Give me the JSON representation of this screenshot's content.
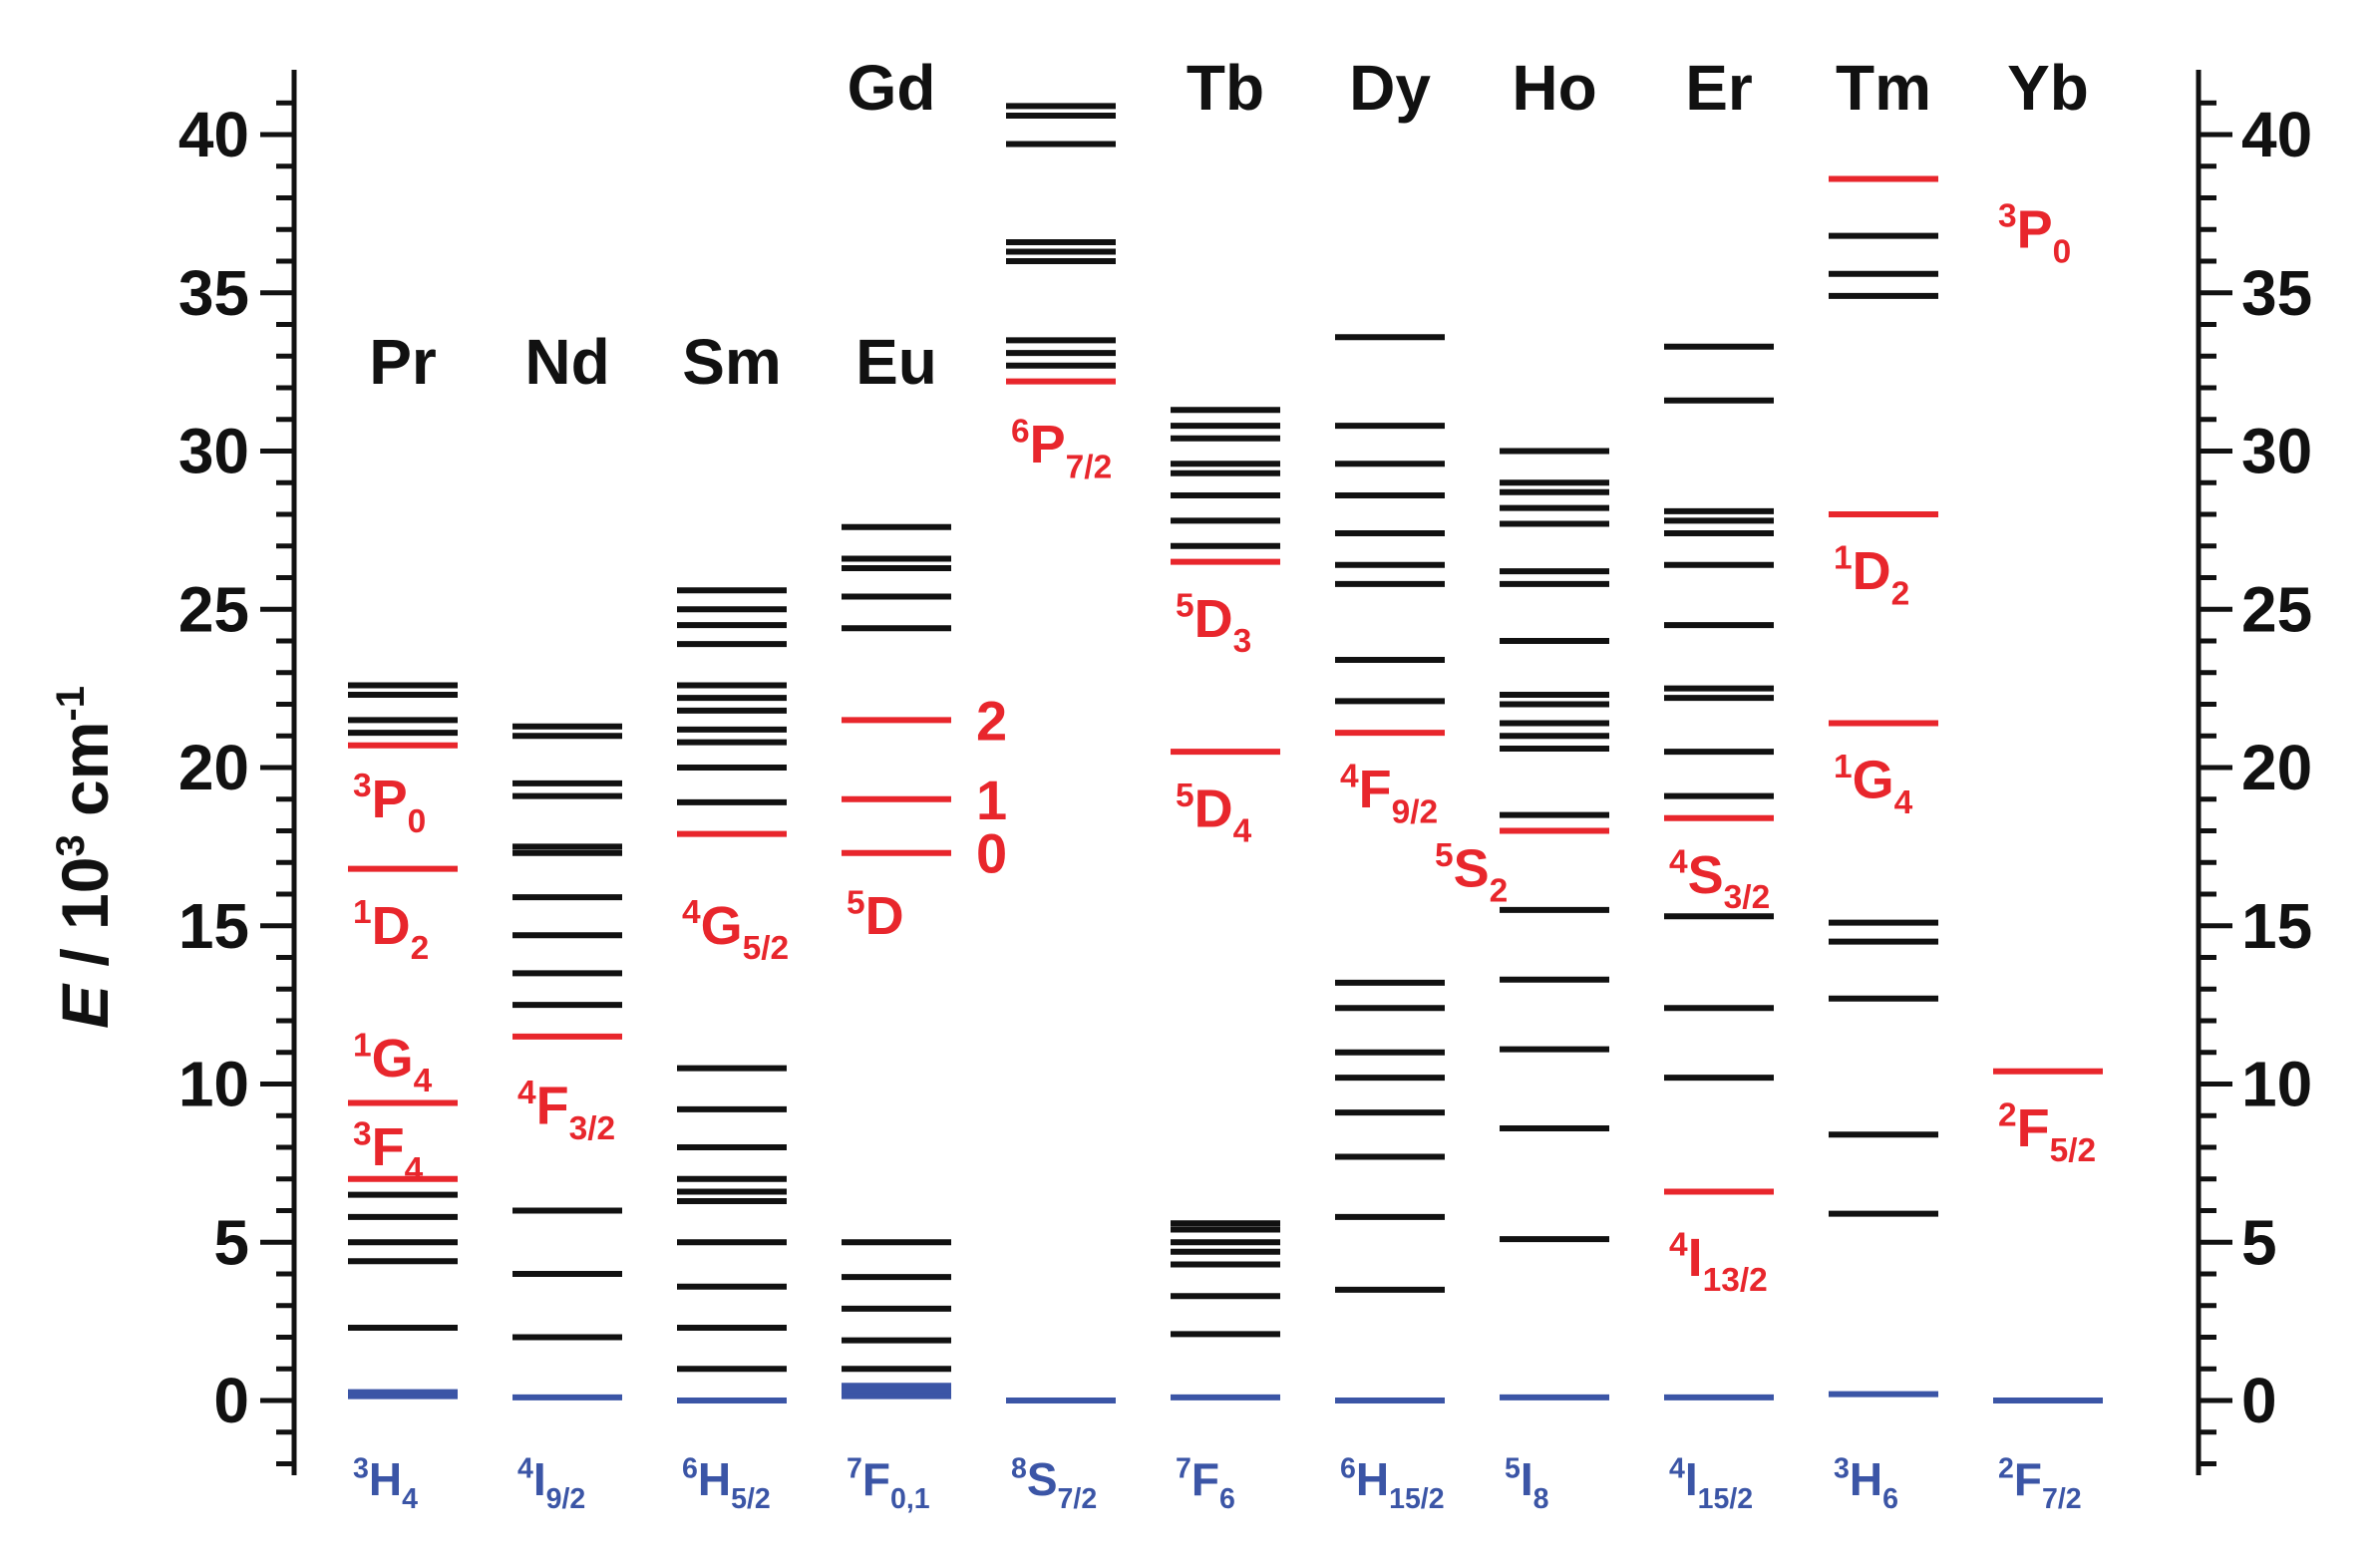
{
  "chart_data": {
    "type": "energy-level-diagram",
    "ylabel": "E / 10",
    "ylabel_sup": "3",
    "ylabel_unit": "cm",
    "ylabel_unit_sup": "-1",
    "ylim": [
      -2.5,
      42
    ],
    "yticks": [
      0,
      5,
      10,
      15,
      20,
      25,
      30,
      35,
      40
    ],
    "colors": {
      "black": "#111111",
      "red": "#e8262c",
      "blue": "#3b55a6"
    },
    "ions": [
      {
        "name": "Pr",
        "ground": {
          "base": "H",
          "pre": "3",
          "sub": "4"
        },
        "levels": [
          {
            "E": 2.3,
            "c": "black"
          },
          {
            "E": 4.4,
            "c": "black"
          },
          {
            "E": 5.0,
            "c": "black"
          },
          {
            "E": 5.8,
            "c": "black"
          },
          {
            "E": 6.5,
            "c": "black"
          },
          {
            "E": 7.0,
            "c": "red"
          },
          {
            "E": 9.4,
            "c": "red"
          },
          {
            "E": 16.8,
            "c": "red"
          },
          {
            "E": 20.7,
            "c": "red"
          },
          {
            "E": 21.1,
            "c": "black"
          },
          {
            "E": 21.5,
            "c": "black"
          },
          {
            "E": 22.3,
            "c": "black"
          },
          {
            "E": 22.6,
            "c": "black"
          },
          {
            "E": 0.2,
            "c": "blue",
            "thick": true
          }
        ],
        "labels": [
          {
            "base": "P",
            "pre": "3",
            "sub": "0",
            "E": 19.0
          },
          {
            "base": "D",
            "pre": "1",
            "sub": "2",
            "E": 15.0
          },
          {
            "base": "G",
            "pre": "1",
            "sub": "4",
            "E": 10.8
          },
          {
            "base": "F",
            "pre": "3",
            "sub": "4",
            "E": 8.0
          }
        ]
      },
      {
        "name": "Nd",
        "ground": {
          "base": "I",
          "pre": "4",
          "sub": "9/2"
        },
        "levels": [
          {
            "E": 2.0,
            "c": "black"
          },
          {
            "E": 4.0,
            "c": "black"
          },
          {
            "E": 6.0,
            "c": "black"
          },
          {
            "E": 11.5,
            "c": "red"
          },
          {
            "E": 12.5,
            "c": "black"
          },
          {
            "E": 13.5,
            "c": "black"
          },
          {
            "E": 14.7,
            "c": "black"
          },
          {
            "E": 15.9,
            "c": "black"
          },
          {
            "E": 17.3,
            "c": "black"
          },
          {
            "E": 17.5,
            "c": "black"
          },
          {
            "E": 19.1,
            "c": "black"
          },
          {
            "E": 19.5,
            "c": "black"
          },
          {
            "E": 21.0,
            "c": "black"
          },
          {
            "E": 21.3,
            "c": "black"
          },
          {
            "E": 0.1,
            "c": "blue"
          }
        ],
        "labels": [
          {
            "base": "F",
            "pre": "4",
            "sub": "3/2",
            "E": 9.3
          }
        ]
      },
      {
        "name": "Sm",
        "ground": {
          "base": "H",
          "pre": "6",
          "sub": "5/2"
        },
        "levels": [
          {
            "E": 1.0,
            "c": "black"
          },
          {
            "E": 2.3,
            "c": "black"
          },
          {
            "E": 3.6,
            "c": "black"
          },
          {
            "E": 5.0,
            "c": "black"
          },
          {
            "E": 6.3,
            "c": "black"
          },
          {
            "E": 6.6,
            "c": "black"
          },
          {
            "E": 7.0,
            "c": "black"
          },
          {
            "E": 8.0,
            "c": "black"
          },
          {
            "E": 9.2,
            "c": "black"
          },
          {
            "E": 10.5,
            "c": "black"
          },
          {
            "E": 17.9,
            "c": "red"
          },
          {
            "E": 18.9,
            "c": "black"
          },
          {
            "E": 20.0,
            "c": "black"
          },
          {
            "E": 20.8,
            "c": "black"
          },
          {
            "E": 21.2,
            "c": "black"
          },
          {
            "E": 21.8,
            "c": "black"
          },
          {
            "E": 22.2,
            "c": "black"
          },
          {
            "E": 22.6,
            "c": "black"
          },
          {
            "E": 23.9,
            "c": "black"
          },
          {
            "E": 24.5,
            "c": "black"
          },
          {
            "E": 25.0,
            "c": "black"
          },
          {
            "E": 25.6,
            "c": "black"
          },
          {
            "E": 0.0,
            "c": "blue"
          }
        ],
        "labels": [
          {
            "base": "G",
            "pre": "4",
            "sub": "5/2",
            "E": 15.0
          }
        ]
      },
      {
        "name": "Eu",
        "ground": {
          "base": "F",
          "pre": "7",
          "sub": "0,1"
        },
        "levels": [
          {
            "E": 1.0,
            "c": "black"
          },
          {
            "E": 1.9,
            "c": "black"
          },
          {
            "E": 2.9,
            "c": "black"
          },
          {
            "E": 3.9,
            "c": "black"
          },
          {
            "E": 5.0,
            "c": "black"
          },
          {
            "E": 17.3,
            "c": "red"
          },
          {
            "E": 19.0,
            "c": "red"
          },
          {
            "E": 21.5,
            "c": "red"
          },
          {
            "E": 24.4,
            "c": "black"
          },
          {
            "E": 25.4,
            "c": "black"
          },
          {
            "E": 26.3,
            "c": "black"
          },
          {
            "E": 26.6,
            "c": "black"
          },
          {
            "E": 27.6,
            "c": "black"
          },
          {
            "E": 0.2,
            "c": "blue",
            "thick": true
          },
          {
            "E": 0.4,
            "c": "blue",
            "thick": true
          }
        ],
        "labels": [
          {
            "base": "D",
            "pre": "5",
            "sub": "",
            "E": 15.3
          }
        ],
        "side_labels": [
          {
            "text": "0",
            "E": 17.3
          },
          {
            "text": "1",
            "E": 19.0
          },
          {
            "text": "2",
            "E": 21.5
          }
        ]
      },
      {
        "name": "Gd",
        "ground": {
          "base": "S",
          "pre": "8",
          "sub": "7/2"
        },
        "levels": [
          {
            "E": 32.2,
            "c": "red"
          },
          {
            "E": 32.7,
            "c": "black"
          },
          {
            "E": 33.1,
            "c": "black"
          },
          {
            "E": 33.5,
            "c": "black"
          },
          {
            "E": 36.0,
            "c": "black"
          },
          {
            "E": 36.3,
            "c": "black"
          },
          {
            "E": 36.6,
            "c": "black"
          },
          {
            "E": 39.7,
            "c": "black"
          },
          {
            "E": 40.6,
            "c": "black"
          },
          {
            "E": 40.9,
            "c": "black"
          },
          {
            "E": 0.0,
            "c": "blue"
          }
        ],
        "labels": [
          {
            "base": "P",
            "pre": "6",
            "sub": "7/2",
            "E": 30.2
          }
        ]
      },
      {
        "name": "Tb",
        "ground": {
          "base": "F",
          "pre": "7",
          "sub": "6"
        },
        "levels": [
          {
            "E": 2.1,
            "c": "black"
          },
          {
            "E": 3.3,
            "c": "black"
          },
          {
            "E": 4.3,
            "c": "black"
          },
          {
            "E": 4.7,
            "c": "black"
          },
          {
            "E": 5.0,
            "c": "black"
          },
          {
            "E": 5.4,
            "c": "black"
          },
          {
            "E": 5.6,
            "c": "black"
          },
          {
            "E": 20.5,
            "c": "red"
          },
          {
            "E": 26.5,
            "c": "red"
          },
          {
            "E": 27.0,
            "c": "black"
          },
          {
            "E": 27.8,
            "c": "black"
          },
          {
            "E": 28.6,
            "c": "black"
          },
          {
            "E": 29.3,
            "c": "black"
          },
          {
            "E": 29.6,
            "c": "black"
          },
          {
            "E": 30.4,
            "c": "black"
          },
          {
            "E": 30.8,
            "c": "black"
          },
          {
            "E": 31.3,
            "c": "black"
          },
          {
            "E": 0.1,
            "c": "blue"
          }
        ],
        "labels": [
          {
            "base": "D",
            "pre": "5",
            "sub": "4",
            "E": 18.7
          },
          {
            "base": "D",
            "pre": "5",
            "sub": "3",
            "E": 24.7
          }
        ]
      },
      {
        "name": "Dy",
        "ground": {
          "base": "H",
          "pre": "6",
          "sub": "15/2"
        },
        "levels": [
          {
            "E": 3.5,
            "c": "black"
          },
          {
            "E": 5.8,
            "c": "black"
          },
          {
            "E": 7.7,
            "c": "black"
          },
          {
            "E": 9.1,
            "c": "black"
          },
          {
            "E": 10.2,
            "c": "black"
          },
          {
            "E": 11.0,
            "c": "black"
          },
          {
            "E": 12.4,
            "c": "black"
          },
          {
            "E": 13.2,
            "c": "black"
          },
          {
            "E": 21.1,
            "c": "red"
          },
          {
            "E": 22.1,
            "c": "black"
          },
          {
            "E": 23.4,
            "c": "black"
          },
          {
            "E": 25.8,
            "c": "black"
          },
          {
            "E": 26.4,
            "c": "black"
          },
          {
            "E": 27.4,
            "c": "black"
          },
          {
            "E": 28.6,
            "c": "black"
          },
          {
            "E": 29.6,
            "c": "black"
          },
          {
            "E": 30.8,
            "c": "black"
          },
          {
            "E": 33.6,
            "c": "black"
          },
          {
            "E": 0.0,
            "c": "blue"
          }
        ],
        "labels": [
          {
            "base": "F",
            "pre": "4",
            "sub": "9/2",
            "E": 19.3
          }
        ]
      },
      {
        "name": "Ho",
        "ground": {
          "base": "I",
          "pre": "5",
          "sub": "8"
        },
        "levels": [
          {
            "E": 5.1,
            "c": "black"
          },
          {
            "E": 8.6,
            "c": "black"
          },
          {
            "E": 11.1,
            "c": "black"
          },
          {
            "E": 13.3,
            "c": "black"
          },
          {
            "E": 15.5,
            "c": "black"
          },
          {
            "E": 18.0,
            "c": "red"
          },
          {
            "E": 18.5,
            "c": "black"
          },
          {
            "E": 20.6,
            "c": "black"
          },
          {
            "E": 21.0,
            "c": "black"
          },
          {
            "E": 21.4,
            "c": "black"
          },
          {
            "E": 22.0,
            "c": "black"
          },
          {
            "E": 22.3,
            "c": "black"
          },
          {
            "E": 24.0,
            "c": "black"
          },
          {
            "E": 25.8,
            "c": "black"
          },
          {
            "E": 26.2,
            "c": "black"
          },
          {
            "E": 27.7,
            "c": "black"
          },
          {
            "E": 28.2,
            "c": "black"
          },
          {
            "E": 28.7,
            "c": "black"
          },
          {
            "E": 29.0,
            "c": "black"
          },
          {
            "E": 30.0,
            "c": "black"
          },
          {
            "E": 0.1,
            "c": "blue"
          }
        ],
        "labels": [
          {
            "base": "S",
            "pre": "5",
            "sub": "2",
            "E": 16.8,
            "left": true
          }
        ]
      },
      {
        "name": "Er",
        "ground": {
          "base": "I",
          "pre": "4",
          "sub": "15/2"
        },
        "levels": [
          {
            "E": 6.6,
            "c": "red"
          },
          {
            "E": 10.2,
            "c": "black"
          },
          {
            "E": 12.4,
            "c": "black"
          },
          {
            "E": 15.3,
            "c": "black"
          },
          {
            "E": 18.4,
            "c": "red"
          },
          {
            "E": 19.1,
            "c": "black"
          },
          {
            "E": 20.5,
            "c": "black"
          },
          {
            "E": 22.2,
            "c": "black"
          },
          {
            "E": 22.5,
            "c": "black"
          },
          {
            "E": 24.5,
            "c": "black"
          },
          {
            "E": 26.4,
            "c": "black"
          },
          {
            "E": 27.4,
            "c": "black"
          },
          {
            "E": 27.8,
            "c": "black"
          },
          {
            "E": 28.1,
            "c": "black"
          },
          {
            "E": 31.6,
            "c": "black"
          },
          {
            "E": 33.3,
            "c": "black"
          },
          {
            "E": 0.1,
            "c": "blue"
          }
        ],
        "labels": [
          {
            "base": "S",
            "pre": "4",
            "sub": "3/2",
            "E": 16.6
          },
          {
            "base": "I",
            "pre": "4",
            "sub": "13/2",
            "E": 4.5
          }
        ]
      },
      {
        "name": "Tm",
        "ground": {
          "base": "H",
          "pre": "3",
          "sub": "6"
        },
        "levels": [
          {
            "E": 5.9,
            "c": "black"
          },
          {
            "E": 8.4,
            "c": "black"
          },
          {
            "E": 12.7,
            "c": "black"
          },
          {
            "E": 14.5,
            "c": "black"
          },
          {
            "E": 15.1,
            "c": "black"
          },
          {
            "E": 21.4,
            "c": "red"
          },
          {
            "E": 28.0,
            "c": "red"
          },
          {
            "E": 34.9,
            "c": "black"
          },
          {
            "E": 35.6,
            "c": "black"
          },
          {
            "E": 36.8,
            "c": "black"
          },
          {
            "E": 38.6,
            "c": "red"
          },
          {
            "E": 0.2,
            "c": "blue"
          }
        ],
        "labels": [
          {
            "base": "G",
            "pre": "1",
            "sub": "4",
            "E": 19.6
          },
          {
            "base": "D",
            "pre": "1",
            "sub": "2",
            "E": 26.2
          }
        ]
      },
      {
        "name": "Yb",
        "ground": {
          "base": "F",
          "pre": "2",
          "sub": "7/2"
        },
        "levels": [
          {
            "E": 10.4,
            "c": "red"
          },
          {
            "E": 0.0,
            "c": "blue"
          }
        ],
        "labels": [
          {
            "base": "F",
            "pre": "2",
            "sub": "5/2",
            "E": 8.6
          },
          {
            "base": "P",
            "pre": "3",
            "sub": "0",
            "E": 37.0
          }
        ]
      }
    ]
  }
}
